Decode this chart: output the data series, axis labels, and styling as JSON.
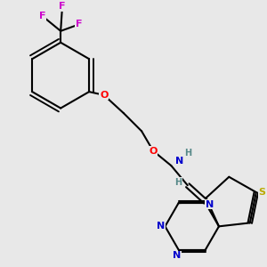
{
  "background_color": "#e8e8e8",
  "bond_color": "#000000",
  "bond_width": 1.5,
  "atom_colors": {
    "C": "#000000",
    "N": "#0000cc",
    "O": "#ff0000",
    "S": "#bbaa00",
    "F": "#cc00cc",
    "H": "#558888"
  },
  "font_size": 8.0
}
